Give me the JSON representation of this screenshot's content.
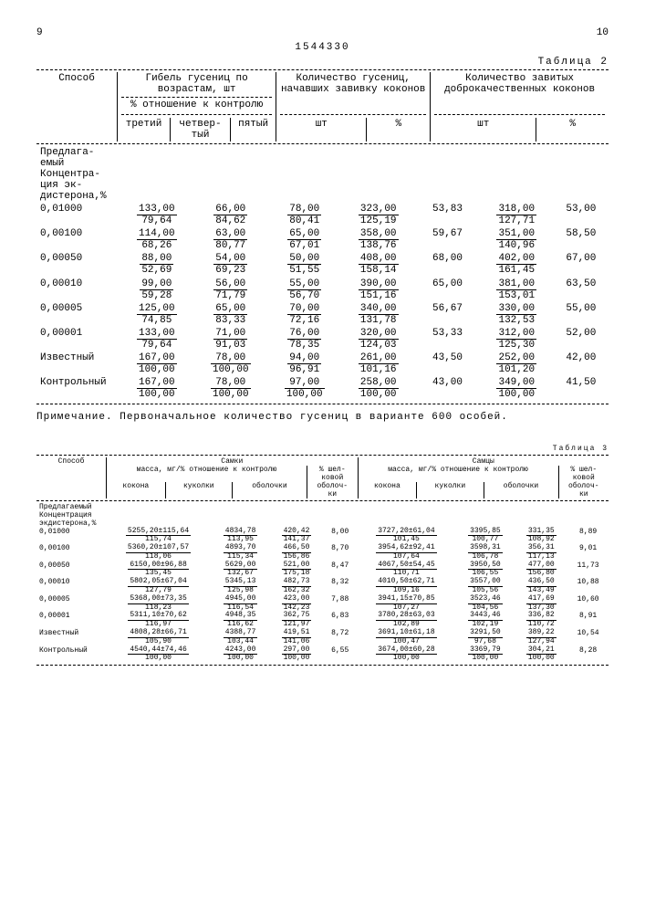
{
  "page_left": "9",
  "doc_number": "1544330",
  "page_right": "10",
  "table2": {
    "label": "Таблица 2",
    "hdr": {
      "sposob": "Способ",
      "gibel": "Гибель гусениц по возрастам, шт",
      "otnosh": "% отношение к контролю",
      "kol_nach": "Количество гусениц, начавших завивку коконов",
      "kol_zav": "Количество завитых доброкачественных коконов",
      "tret": "третий",
      "chetv": "четвер-\nтый",
      "pyat": "пятый",
      "sht": "шт",
      "pct": "%"
    },
    "group_label": "Предлага-\nемый\nКонцентра-\nция эк-\nдистерона,%",
    "rows": [
      {
        "l": "0,01000",
        "c3": [
          "133,00",
          "79,64"
        ],
        "c4": [
          "66,00",
          "84,62"
        ],
        "c5": [
          "78,00",
          "80,41"
        ],
        "n1": [
          "323,00",
          "125,19"
        ],
        "n2": "53,83",
        "z1": [
          "318,00",
          "127,71"
        ],
        "z2": "53,00"
      },
      {
        "l": "0,00100",
        "c3": [
          "114,00",
          "68,26"
        ],
        "c4": [
          "63,00",
          "80,77"
        ],
        "c5": [
          "65,00",
          "67,01"
        ],
        "n1": [
          "358,00",
          "138,76"
        ],
        "n2": "59,67",
        "z1": [
          "351,00",
          "140,96"
        ],
        "z2": "58,50"
      },
      {
        "l": "0,00050",
        "c3": [
          "88,00",
          "52,69"
        ],
        "c4": [
          "54,00",
          "69,23"
        ],
        "c5": [
          "50,00",
          "51,55"
        ],
        "n1": [
          "408,00",
          "158,14"
        ],
        "n2": "68,00",
        "z1": [
          "402,00",
          "161,45"
        ],
        "z2": "67,00"
      },
      {
        "l": "0,00010",
        "c3": [
          "99,00",
          "59,28"
        ],
        "c4": [
          "56,00",
          "71,79"
        ],
        "c5": [
          "55,00",
          "56,70"
        ],
        "n1": [
          "390,00",
          "151,16"
        ],
        "n2": "65,00",
        "z1": [
          "381,00",
          "153,01"
        ],
        "z2": "63,50"
      },
      {
        "l": "0,00005",
        "c3": [
          "125,00",
          "74,85"
        ],
        "c4": [
          "65,00",
          "83,33"
        ],
        "c5": [
          "70,00",
          "72,16"
        ],
        "n1": [
          "340,00",
          "131,78"
        ],
        "n2": "56,67",
        "z1": [
          "330,00",
          "132,53"
        ],
        "z2": "55,00"
      },
      {
        "l": "0,00001",
        "c3": [
          "133,00",
          "79,64"
        ],
        "c4": [
          "71,00",
          "91,03"
        ],
        "c5": [
          "76,00",
          "78,35"
        ],
        "n1": [
          "320,00",
          "124,03"
        ],
        "n2": "53,33",
        "z1": [
          "312,00",
          "125,30"
        ],
        "z2": "52,00"
      },
      {
        "l": "Известный",
        "c3": [
          "167,00",
          "100,00"
        ],
        "c4": [
          "78,00",
          "100,00"
        ],
        "c5": [
          "94,00",
          "96,91"
        ],
        "n1": [
          "261,00",
          "101,16"
        ],
        "n2": "43,50",
        "z1": [
          "252,00",
          "101,20"
        ],
        "z2": "42,00"
      },
      {
        "l": "Контрольный",
        "c3": [
          "167,00",
          "100,00"
        ],
        "c4": [
          "78,00",
          "100,00"
        ],
        "c5": [
          "97,00",
          "100,00"
        ],
        "n1": [
          "258,00",
          "100,00"
        ],
        "n2": "43,00",
        "z1": [
          "349,00",
          "100,00"
        ],
        "z2": "41,50"
      }
    ],
    "note": "Примечание. Первоначальное количество гусениц в варианте 600 особей."
  },
  "table3": {
    "label": "Таблица 3",
    "hdr": {
      "sposob": "Способ",
      "samki": "Самки",
      "samcy": "Самцы",
      "massa": "масса, мг/% отношение к контролю",
      "shelk": "% шел-\nковой\nоболоч-\nки",
      "kokona": "кокона",
      "kukolki": "куколки",
      "obol": "оболочки"
    },
    "group_label": "Предлагаемый\nКонцентрация\nэкдистерона,%",
    "rows": [
      {
        "l": "0,01000",
        "fk": [
          "5255,20±115,64",
          "115,74"
        ],
        "fp": [
          "4834,78",
          "113,95"
        ],
        "fo": [
          "420,42",
          "141,37"
        ],
        "fs": "8,00",
        "mk": [
          "3727,20±61,04",
          "101,45"
        ],
        "mp": [
          "3395,85",
          "100,77"
        ],
        "mo": [
          "331,35",
          "108,92"
        ],
        "ms": "8,89"
      },
      {
        "l": "0,00100",
        "fk": [
          "5360,20±107,57",
          "118,06"
        ],
        "fp": [
          "4893,70",
          "115,34"
        ],
        "fo": [
          "466,50",
          "156,86"
        ],
        "fs": "8,70",
        "mk": [
          "3954,62±92,41",
          "107,64"
        ],
        "mp": [
          "3598,31",
          "106,78"
        ],
        "mo": [
          "356,31",
          "117,13"
        ],
        "ms": "9,01"
      },
      {
        "l": "0,00050",
        "fk": [
          "6150,00±96,88",
          "135,45"
        ],
        "fp": [
          "5629,00",
          "132,67"
        ],
        "fo": [
          "521,00",
          "175,18"
        ],
        "fs": "8,47",
        "mk": [
          "4067,50±54,45",
          "110,71"
        ],
        "mp": [
          "3950,50",
          "106,55"
        ],
        "mo": [
          "477,00",
          "156,80"
        ],
        "ms": "11,73"
      },
      {
        "l": "0,00010",
        "fk": [
          "5802,05±67,04",
          "127,79"
        ],
        "fp": [
          "5345,13",
          "125,98"
        ],
        "fo": [
          "482,73",
          "162,32"
        ],
        "fs": "8,32",
        "mk": [
          "4010,50±62,71",
          "109,16"
        ],
        "mp": [
          "3557,00",
          "105,56"
        ],
        "mo": [
          "436,50",
          "143,49"
        ],
        "ms": "10,88"
      },
      {
        "l": "0,00005",
        "fk": [
          "5368,00±73,35",
          "118,23"
        ],
        "fp": [
          "4945,00",
          "116,54"
        ],
        "fo": [
          "423,00",
          "142,23"
        ],
        "fs": "7,88",
        "mk": [
          "3941,15±70,85",
          "107,27"
        ],
        "mp": [
          "3523,46",
          "104,56"
        ],
        "mo": [
          "417,69",
          "137,30"
        ],
        "ms": "10,60"
      },
      {
        "l": "0,00001",
        "fk": [
          "5311,10±70,62",
          "116,97"
        ],
        "fp": [
          "4948,35",
          "116,62"
        ],
        "fo": [
          "362,75",
          "121,97"
        ],
        "fs": "6,83",
        "mk": [
          "3780,28±63,03",
          "102,89"
        ],
        "mp": [
          "3443,46",
          "102,19"
        ],
        "mo": [
          "336,82",
          "110,72"
        ],
        "ms": "8,91"
      },
      {
        "l": "Известный",
        "fk": [
          "4808,28±66,71",
          "105,90"
        ],
        "fp": [
          "4388,77",
          "103,44"
        ],
        "fo": [
          "419,51",
          "141,06"
        ],
        "fs": "8,72",
        "mk": [
          "3691,10±61,18",
          "100,47"
        ],
        "mp": [
          "3291,50",
          "97,68"
        ],
        "mo": [
          "389,22",
          "127,94"
        ],
        "ms": "10,54"
      },
      {
        "l": "Контрольный",
        "fk": [
          "4540,44±74,46",
          "100,00"
        ],
        "fp": [
          "4243,00",
          "100,00"
        ],
        "fo": [
          "297,00",
          "100,00"
        ],
        "fs": "6,55",
        "mk": [
          "3674,00±60,28",
          "100,00"
        ],
        "mp": [
          "3369,79",
          "100,00"
        ],
        "mo": [
          "304,21",
          "100,00"
        ],
        "ms": "8,28"
      }
    ]
  }
}
